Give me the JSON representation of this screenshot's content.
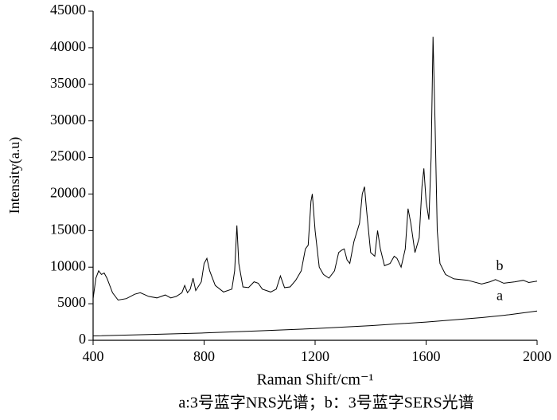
{
  "chart_data": {
    "type": "line",
    "xlabel": "Raman Shift/cm⁻¹",
    "ylabel": "Intensity(a.u)",
    "caption": "a:3号蓝字NRS光谱；b：3号蓝字SERS光谱",
    "xlim": [
      400,
      2000
    ],
    "xticks": [
      400,
      800,
      1200,
      1600,
      2000
    ],
    "ylim": [
      0,
      45000
    ],
    "yticks": [
      0,
      5000,
      10000,
      15000,
      20000,
      25000,
      30000,
      35000,
      40000,
      45000
    ],
    "series": [
      {
        "name": "b",
        "color": "#000000",
        "x": [
          400,
          410,
          420,
          430,
          440,
          450,
          470,
          490,
          520,
          550,
          570,
          600,
          630,
          660,
          680,
          700,
          720,
          730,
          740,
          750,
          760,
          770,
          790,
          800,
          810,
          820,
          840,
          870,
          900,
          910,
          918,
          925,
          940,
          960,
          980,
          995,
          1010,
          1040,
          1060,
          1075,
          1090,
          1110,
          1130,
          1150,
          1165,
          1175,
          1185,
          1190,
          1200,
          1215,
          1230,
          1250,
          1270,
          1285,
          1295,
          1305,
          1315,
          1325,
          1340,
          1360,
          1370,
          1378,
          1385,
          1400,
          1415,
          1425,
          1435,
          1450,
          1470,
          1485,
          1495,
          1510,
          1525,
          1535,
          1545,
          1560,
          1575,
          1585,
          1592,
          1600,
          1610,
          1618,
          1625,
          1632,
          1640,
          1650,
          1670,
          1700,
          1750,
          1800,
          1830,
          1850,
          1880,
          1920,
          1950,
          1970,
          2000
        ],
        "values": [
          5700,
          8500,
          9500,
          9000,
          9200,
          8500,
          6500,
          5500,
          5700,
          6300,
          6500,
          6000,
          5800,
          6200,
          5800,
          6000,
          6500,
          7500,
          6500,
          7000,
          8500,
          6800,
          8000,
          10500,
          11200,
          9500,
          7500,
          6600,
          7000,
          9500,
          15700,
          10500,
          7300,
          7200,
          8000,
          7800,
          7000,
          6600,
          7000,
          8800,
          7200,
          7300,
          8200,
          9500,
          12500,
          13000,
          19000,
          20000,
          15000,
          10000,
          9000,
          8500,
          9500,
          12000,
          12300,
          12500,
          11000,
          10500,
          13500,
          16000,
          20000,
          21000,
          18000,
          12000,
          11500,
          15000,
          12500,
          10200,
          10500,
          11500,
          11200,
          10000,
          12500,
          18000,
          16000,
          12000,
          14000,
          21000,
          23500,
          19000,
          16500,
          25000,
          41500,
          30000,
          15000,
          10500,
          9000,
          8400,
          8200,
          7700,
          8000,
          8300,
          7800,
          8000,
          8200,
          7900,
          8100
        ]
      },
      {
        "name": "a",
        "color": "#000000",
        "x": [
          400,
          600,
          800,
          1000,
          1200,
          1400,
          1600,
          1800,
          1900,
          2000
        ],
        "values": [
          600,
          800,
          1000,
          1300,
          1600,
          2000,
          2500,
          3100,
          3500,
          4000
        ]
      }
    ]
  }
}
